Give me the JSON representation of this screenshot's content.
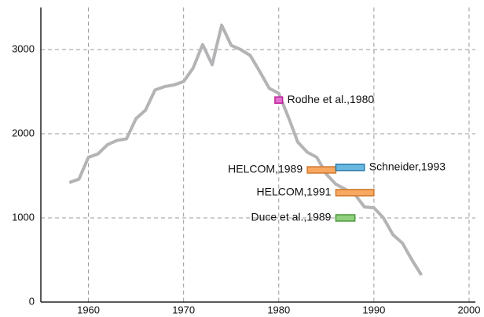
{
  "chart_data": {
    "type": "line",
    "x": [
      1958,
      1959,
      1960,
      1961,
      1962,
      1963,
      1964,
      1965,
      1966,
      1967,
      1968,
      1969,
      1970,
      1971,
      1972,
      1973,
      1974,
      1975,
      1976,
      1977,
      1978,
      1979,
      1980,
      1981,
      1982,
      1983,
      1984,
      1985,
      1986,
      1987,
      1988,
      1989,
      1990,
      1991,
      1992,
      1993,
      1994,
      1995
    ],
    "series": [
      {
        "color": "#b4b4b6",
        "values": [
          1420,
          1460,
          1720,
          1760,
          1870,
          1920,
          1940,
          2180,
          2280,
          2520,
          2560,
          2580,
          2620,
          2780,
          3060,
          2820,
          3290,
          3050,
          3000,
          2930,
          2740,
          2540,
          2480,
          2200,
          1900,
          1780,
          1720,
          1520,
          1400,
          1340,
          1280,
          1130,
          1120,
          1000,
          800,
          700,
          500,
          320
        ]
      }
    ],
    "ranges": [
      {
        "label": "Rodhe et al.,1980",
        "start": 1979.6,
        "end": 1980.4,
        "value": 2400,
        "color": "#e070d0",
        "stroke": "#c0209a"
      },
      {
        "label": "HELCOM,1989",
        "start": 1983,
        "end": 1986,
        "value": 1570,
        "color": "#f8a860",
        "stroke": "#d07a30"
      },
      {
        "label": "Schneider,1993",
        "start": 1986,
        "end": 1989,
        "value": 1600,
        "color": "#68b8e0",
        "stroke": "#2a78a8"
      },
      {
        "label": "HELCOM,1991",
        "start": 1986,
        "end": 1990,
        "value": 1300,
        "color": "#f8a860",
        "stroke": "#d07a30"
      },
      {
        "label": "Duce et al.,1989",
        "start": 1986,
        "end": 1988,
        "value": 1000,
        "color": "#90d080",
        "stroke": "#4a9a3a"
      }
    ],
    "xlim": [
      1955,
      2000
    ],
    "xticks": [
      1960,
      1970,
      1980,
      1990,
      2000
    ],
    "ylim": [
      0,
      3500
    ],
    "yticks": [
      0,
      1000,
      2000,
      3000
    ],
    "grid": true
  }
}
